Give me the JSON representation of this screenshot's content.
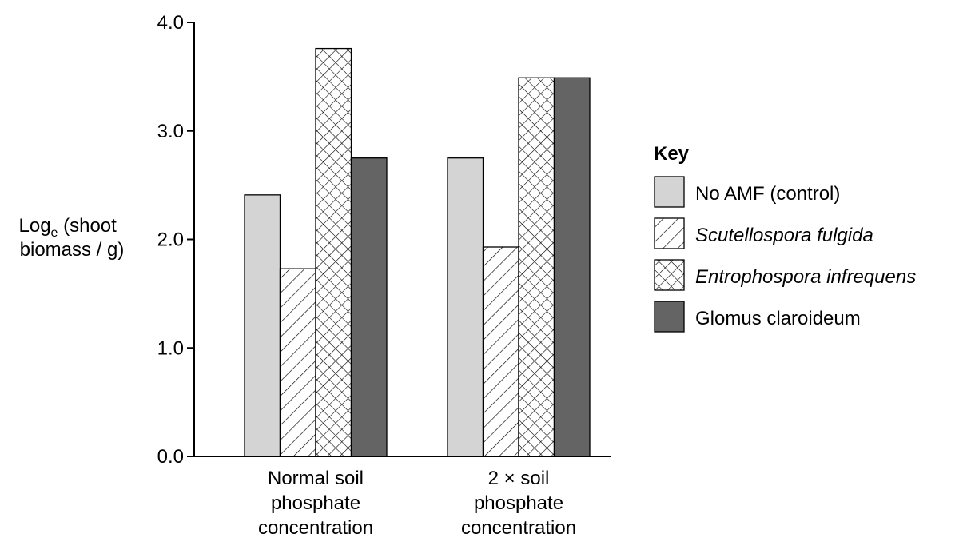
{
  "chart_data": {
    "type": "bar",
    "categories": [
      [
        "Normal soil",
        "phosphate",
        "concentration"
      ],
      [
        "2 × soil",
        "phosphate",
        "concentration"
      ]
    ],
    "ylabel": {
      "line1_main": "Log",
      "line1_sub": "e",
      "line1_rest": " (shoot",
      "line2": "biomass / g)"
    },
    "ylim": [
      0,
      4.0
    ],
    "yticks": [
      "0.0",
      "1.0",
      "2.0",
      "3.0",
      "4.0"
    ],
    "legend_title": "Key",
    "legend_position": "right",
    "series": [
      {
        "name": "No AMF (control)",
        "italic": false,
        "pattern": "solid-light",
        "color": "#d4d4d4",
        "values": [
          2.41,
          2.75
        ]
      },
      {
        "name": "Scutellospora fulgida",
        "italic": true,
        "pattern": "diagonal-hatch",
        "color": "#ffffff",
        "values": [
          1.73,
          1.93
        ]
      },
      {
        "name": "Entrophospora infrequens",
        "italic": true,
        "pattern": "cross-hatch",
        "color": "#ffffff",
        "values": [
          3.76,
          3.49
        ]
      },
      {
        "name": "Glomus claroideum",
        "italic": false,
        "pattern": "solid-dark",
        "color": "#646464",
        "values": [
          2.75,
          3.49
        ]
      }
    ]
  }
}
